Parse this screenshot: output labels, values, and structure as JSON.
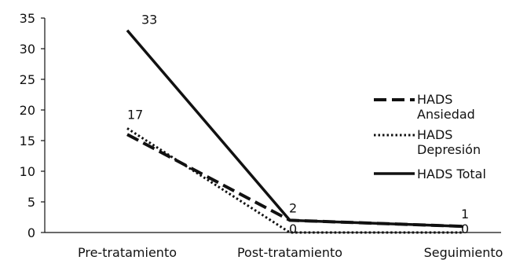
{
  "chart_data": {
    "type": "line",
    "categories": [
      "Pre-tratamiento",
      "Post-tratamiento",
      "Seguimiento"
    ],
    "ylim": [
      0,
      35
    ],
    "yticks": [
      0,
      5,
      10,
      15,
      20,
      25,
      30,
      35
    ],
    "grid": false,
    "legend_position": "right",
    "series": [
      {
        "name": "HADS Ansiedad",
        "name_lines": [
          "HADS",
          "Ansiedad"
        ],
        "values": [
          16,
          2,
          1
        ],
        "style": "dashed",
        "color": "#111111"
      },
      {
        "name": "HADS Depresión",
        "name_lines": [
          "HADS",
          "Depresión"
        ],
        "values": [
          17,
          0,
          0
        ],
        "style": "dotted",
        "color": "#111111"
      },
      {
        "name": "HADS Total",
        "name_lines": [
          "HADS Total"
        ],
        "values": [
          33,
          2,
          1
        ],
        "style": "solid",
        "color": "#111111"
      }
    ],
    "data_labels": [
      {
        "text": "33",
        "category": 0,
        "value": 33
      },
      {
        "text": "17",
        "category": 0,
        "value": 17
      },
      {
        "text": "2",
        "category": 1,
        "value": 2
      },
      {
        "text": "0",
        "category": 1,
        "value": 0
      },
      {
        "text": "1",
        "category": 2,
        "value": 1
      },
      {
        "text": "0",
        "category": 2,
        "value": 0
      }
    ]
  }
}
